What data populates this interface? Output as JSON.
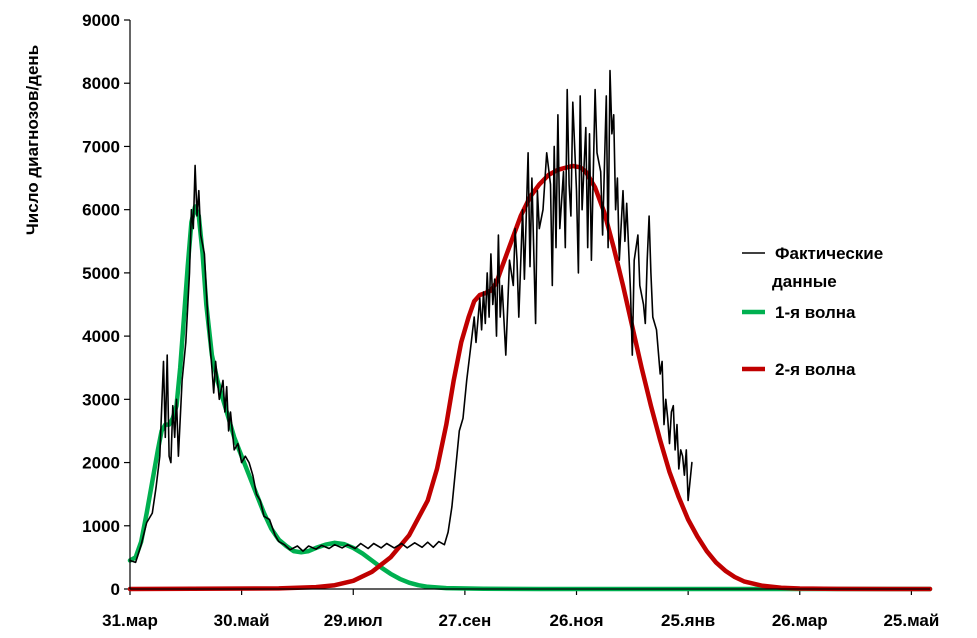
{
  "chart_data": {
    "type": "line",
    "title": "",
    "xlabel": "",
    "ylabel": "Число диагнозов/день",
    "x_unit": "days since 31.мар",
    "xlim": [
      0,
      430
    ],
    "ylim": [
      0,
      9000
    ],
    "y_ticks": [
      0,
      1000,
      2000,
      3000,
      4000,
      5000,
      6000,
      7000,
      8000,
      9000
    ],
    "x_ticks": [
      {
        "day": 0,
        "label": "31.мар"
      },
      {
        "day": 60,
        "label": "30.май"
      },
      {
        "day": 120,
        "label": "29.июл"
      },
      {
        "day": 180,
        "label": "27.сен"
      },
      {
        "day": 240,
        "label": "26.ноя"
      },
      {
        "day": 300,
        "label": "25.янв"
      },
      {
        "day": 360,
        "label": "26.мар"
      },
      {
        "day": 420,
        "label": "25.май"
      }
    ],
    "grid": false,
    "legend_position": "right",
    "series": [
      {
        "name": "Фактические данные",
        "legend_label_lines": [
          "Фактические",
          "данные"
        ],
        "color": "#000000",
        "style": "thin",
        "points": [
          [
            0,
            450
          ],
          [
            3,
            420
          ],
          [
            6,
            700
          ],
          [
            9,
            1050
          ],
          [
            12,
            1200
          ],
          [
            14,
            1600
          ],
          [
            16,
            2100
          ],
          [
            18,
            3600
          ],
          [
            19,
            2400
          ],
          [
            20,
            3700
          ],
          [
            21,
            2100
          ],
          [
            22,
            2000
          ],
          [
            23,
            2900
          ],
          [
            24,
            2400
          ],
          [
            25,
            3000
          ],
          [
            26,
            2100
          ],
          [
            28,
            3300
          ],
          [
            30,
            3900
          ],
          [
            32,
            5000
          ],
          [
            33,
            6000
          ],
          [
            34,
            5700
          ],
          [
            35,
            6700
          ],
          [
            36,
            5900
          ],
          [
            37,
            6300
          ],
          [
            38,
            5600
          ],
          [
            40,
            5300
          ],
          [
            42,
            4200
          ],
          [
            44,
            3500
          ],
          [
            45,
            3100
          ],
          [
            46,
            3600
          ],
          [
            48,
            3000
          ],
          [
            50,
            3300
          ],
          [
            51,
            2800
          ],
          [
            52,
            3200
          ],
          [
            53,
            2500
          ],
          [
            54,
            2800
          ],
          [
            56,
            2200
          ],
          [
            58,
            2300
          ],
          [
            60,
            2000
          ],
          [
            62,
            2100
          ],
          [
            64,
            2000
          ],
          [
            66,
            1800
          ],
          [
            68,
            1500
          ],
          [
            70,
            1400
          ],
          [
            72,
            1150
          ],
          [
            75,
            1100
          ],
          [
            78,
            850
          ],
          [
            80,
            750
          ],
          [
            83,
            700
          ],
          [
            86,
            620
          ],
          [
            90,
            680
          ],
          [
            93,
            600
          ],
          [
            96,
            680
          ],
          [
            100,
            630
          ],
          [
            103,
            690
          ],
          [
            107,
            640
          ],
          [
            110,
            700
          ],
          [
            114,
            650
          ],
          [
            117,
            700
          ],
          [
            121,
            640
          ],
          [
            124,
            720
          ],
          [
            128,
            640
          ],
          [
            131,
            720
          ],
          [
            135,
            650
          ],
          [
            138,
            720
          ],
          [
            142,
            650
          ],
          [
            146,
            720
          ],
          [
            149,
            650
          ],
          [
            153,
            730
          ],
          [
            157,
            660
          ],
          [
            160,
            740
          ],
          [
            163,
            660
          ],
          [
            166,
            750
          ],
          [
            169,
            700
          ],
          [
            171,
            900
          ],
          [
            173,
            1300
          ],
          [
            175,
            1900
          ],
          [
            177,
            2500
          ],
          [
            179,
            2700
          ],
          [
            181,
            3300
          ],
          [
            183,
            3800
          ],
          [
            185,
            4300
          ],
          [
            186,
            3900
          ],
          [
            188,
            4600
          ],
          [
            189,
            4100
          ],
          [
            190,
            4700
          ],
          [
            191,
            4200
          ],
          [
            192,
            5000
          ],
          [
            193,
            4300
          ],
          [
            194,
            5300
          ],
          [
            195,
            4500
          ],
          [
            196,
            4900
          ],
          [
            197,
            4000
          ],
          [
            198,
            5600
          ],
          [
            199,
            4300
          ],
          [
            200,
            4800
          ],
          [
            202,
            3700
          ],
          [
            204,
            5200
          ],
          [
            206,
            4800
          ],
          [
            207,
            5700
          ],
          [
            208,
            5200
          ],
          [
            209,
            4300
          ],
          [
            211,
            6000
          ],
          [
            212,
            4900
          ],
          [
            214,
            6900
          ],
          [
            215,
            5100
          ],
          [
            216,
            6500
          ],
          [
            218,
            4200
          ],
          [
            219,
            6300
          ],
          [
            220,
            5700
          ],
          [
            222,
            6000
          ],
          [
            224,
            6900
          ],
          [
            226,
            6400
          ],
          [
            227,
            4800
          ],
          [
            228,
            7000
          ],
          [
            229,
            5400
          ],
          [
            230,
            7500
          ],
          [
            231,
            5700
          ],
          [
            233,
            6600
          ],
          [
            234,
            5400
          ],
          [
            235,
            7900
          ],
          [
            236,
            6400
          ],
          [
            237,
            5900
          ],
          [
            238,
            7700
          ],
          [
            240,
            6300
          ],
          [
            241,
            5000
          ],
          [
            242,
            7800
          ],
          [
            243,
            6000
          ],
          [
            245,
            7300
          ],
          [
            246,
            5400
          ],
          [
            247,
            7200
          ],
          [
            248,
            5200
          ],
          [
            250,
            7900
          ],
          [
            251,
            6900
          ],
          [
            253,
            6600
          ],
          [
            254,
            5600
          ],
          [
            256,
            7800
          ],
          [
            257,
            5400
          ],
          [
            258,
            8200
          ],
          [
            259,
            7200
          ],
          [
            260,
            7500
          ],
          [
            261,
            6000
          ],
          [
            262,
            6500
          ],
          [
            263,
            5200
          ],
          [
            265,
            6300
          ],
          [
            266,
            5500
          ],
          [
            267,
            6100
          ],
          [
            269,
            4700
          ],
          [
            270,
            3700
          ],
          [
            271,
            5200
          ],
          [
            273,
            5600
          ],
          [
            274,
            4800
          ],
          [
            276,
            4500
          ],
          [
            277,
            4200
          ],
          [
            278,
            5200
          ],
          [
            279,
            5900
          ],
          [
            280,
            5000
          ],
          [
            281,
            4300
          ],
          [
            283,
            4100
          ],
          [
            285,
            3400
          ],
          [
            286,
            3600
          ],
          [
            287,
            2600
          ],
          [
            288,
            3000
          ],
          [
            289,
            2700
          ],
          [
            290,
            2300
          ],
          [
            291,
            2800
          ],
          [
            292,
            2900
          ],
          [
            293,
            2200
          ],
          [
            294,
            2600
          ],
          [
            295,
            1900
          ],
          [
            296,
            2200
          ],
          [
            297,
            2100
          ],
          [
            298,
            1800
          ],
          [
            299,
            2200
          ],
          [
            300,
            1400
          ],
          [
            302,
            2000
          ]
        ]
      },
      {
        "name": "1-я волна",
        "color": "#00b050",
        "style": "thick",
        "points": [
          [
            0,
            450
          ],
          [
            3,
            500
          ],
          [
            6,
            750
          ],
          [
            9,
            1200
          ],
          [
            12,
            1700
          ],
          [
            15,
            2200
          ],
          [
            17,
            2500
          ],
          [
            19,
            2600
          ],
          [
            21,
            2600
          ],
          [
            23,
            2700
          ],
          [
            25,
            2900
          ],
          [
            27,
            3500
          ],
          [
            29,
            4300
          ],
          [
            31,
            5100
          ],
          [
            33,
            5800
          ],
          [
            35,
            6050
          ],
          [
            37,
            5900
          ],
          [
            39,
            5300
          ],
          [
            41,
            4500
          ],
          [
            44,
            3700
          ],
          [
            47,
            3300
          ],
          [
            50,
            3000
          ],
          [
            53,
            2700
          ],
          [
            56,
            2400
          ],
          [
            60,
            2100
          ],
          [
            64,
            1800
          ],
          [
            68,
            1500
          ],
          [
            72,
            1200
          ],
          [
            76,
            950
          ],
          [
            80,
            780
          ],
          [
            84,
            680
          ],
          [
            88,
            600
          ],
          [
            92,
            580
          ],
          [
            96,
            600
          ],
          [
            100,
            650
          ],
          [
            105,
            700
          ],
          [
            110,
            730
          ],
          [
            115,
            710
          ],
          [
            120,
            650
          ],
          [
            125,
            560
          ],
          [
            130,
            450
          ],
          [
            135,
            340
          ],
          [
            140,
            240
          ],
          [
            145,
            160
          ],
          [
            150,
            100
          ],
          [
            155,
            60
          ],
          [
            160,
            35
          ],
          [
            170,
            15
          ],
          [
            190,
            5
          ],
          [
            220,
            0
          ],
          [
            430,
            0
          ]
        ]
      },
      {
        "name": "2-я волна",
        "color": "#c00000",
        "style": "thick",
        "points": [
          [
            0,
            0
          ],
          [
            80,
            10
          ],
          [
            100,
            30
          ],
          [
            110,
            60
          ],
          [
            120,
            130
          ],
          [
            130,
            270
          ],
          [
            140,
            500
          ],
          [
            150,
            850
          ],
          [
            160,
            1400
          ],
          [
            165,
            1900
          ],
          [
            170,
            2600
          ],
          [
            174,
            3300
          ],
          [
            178,
            3900
          ],
          [
            182,
            4300
          ],
          [
            185,
            4550
          ],
          [
            188,
            4650
          ],
          [
            191,
            4680
          ],
          [
            194,
            4720
          ],
          [
            197,
            4850
          ],
          [
            200,
            5100
          ],
          [
            205,
            5500
          ],
          [
            210,
            5900
          ],
          [
            215,
            6200
          ],
          [
            220,
            6400
          ],
          [
            225,
            6550
          ],
          [
            230,
            6630
          ],
          [
            235,
            6670
          ],
          [
            238,
            6690
          ],
          [
            242,
            6670
          ],
          [
            245,
            6600
          ],
          [
            250,
            6350
          ],
          [
            255,
            5950
          ],
          [
            260,
            5400
          ],
          [
            265,
            4800
          ],
          [
            270,
            4150
          ],
          [
            275,
            3500
          ],
          [
            280,
            2900
          ],
          [
            285,
            2350
          ],
          [
            290,
            1850
          ],
          [
            295,
            1450
          ],
          [
            300,
            1100
          ],
          [
            305,
            830
          ],
          [
            310,
            600
          ],
          [
            315,
            420
          ],
          [
            320,
            290
          ],
          [
            325,
            190
          ],
          [
            330,
            120
          ],
          [
            340,
            50
          ],
          [
            350,
            20
          ],
          [
            360,
            8
          ],
          [
            380,
            2
          ],
          [
            430,
            0
          ]
        ]
      }
    ]
  }
}
